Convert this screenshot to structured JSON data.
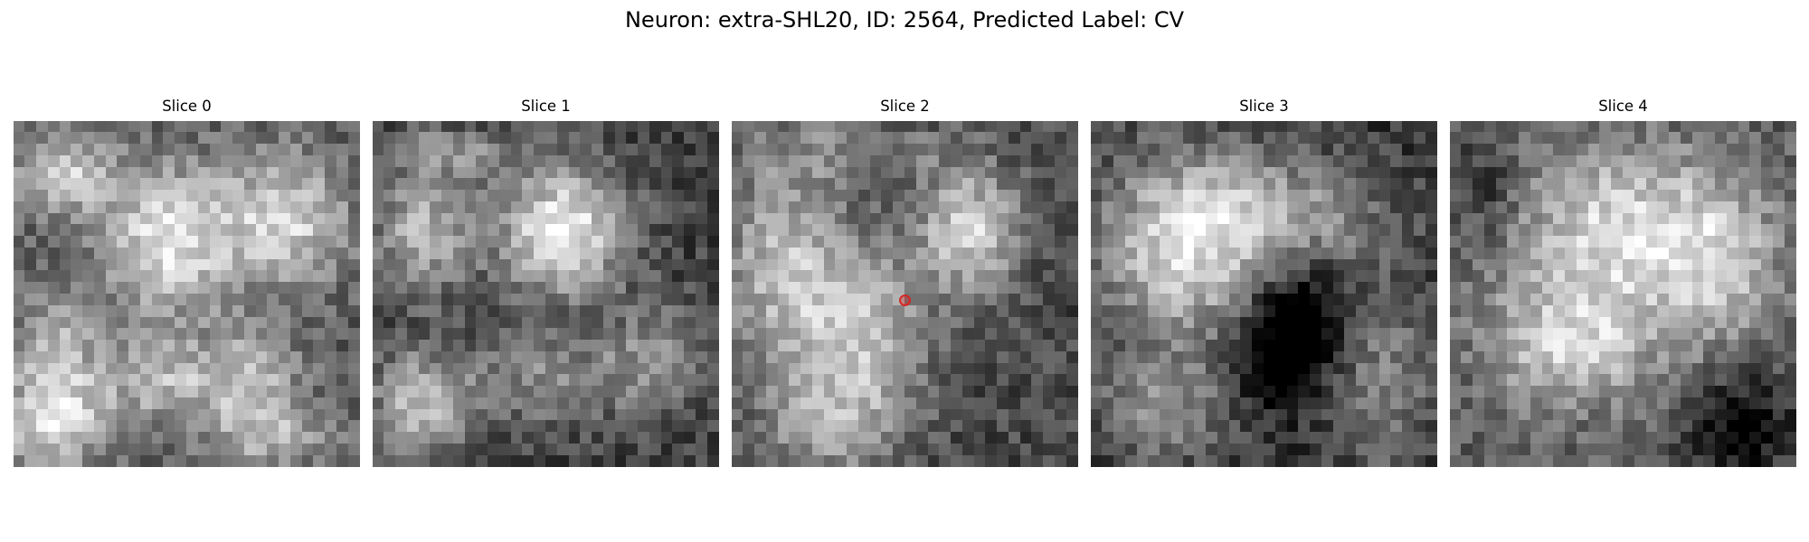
{
  "figure": {
    "title": "Neuron: extra-SHL20, ID: 2564, Predicted Label: CV"
  },
  "slices": [
    {
      "title": "Slice 0"
    },
    {
      "title": "Slice 1"
    },
    {
      "title": "Slice 2"
    },
    {
      "title": "Slice 3"
    },
    {
      "title": "Slice 4"
    }
  ],
  "marker": {
    "slice_index": 2,
    "color": "#d62728",
    "shape": "circle-marker"
  },
  "colormap": "gray"
}
